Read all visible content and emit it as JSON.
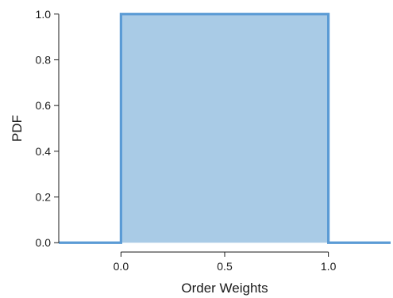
{
  "chart_data": {
    "type": "area",
    "title": "",
    "xlabel": "Order Weights",
    "ylabel": "PDF",
    "xlim": [
      -0.3,
      1.3
    ],
    "ylim": [
      -0.02,
      1.02
    ],
    "x_ticks": [
      "0.0",
      "0.5",
      "1.0"
    ],
    "y_ticks": [
      "0.0",
      "0.2",
      "0.4",
      "0.6",
      "0.8",
      "1.0"
    ],
    "grid": false,
    "series": [
      {
        "x": [
          -0.3,
          0.0,
          0.0,
          1.0,
          1.0,
          1.3
        ],
        "y": [
          0.0,
          0.0,
          1.0,
          1.0,
          0.0,
          0.0
        ]
      }
    ],
    "colors": {
      "line": "#5b9bd5",
      "fill": "#a9cbe6",
      "axis": "#1a1a1a"
    }
  }
}
